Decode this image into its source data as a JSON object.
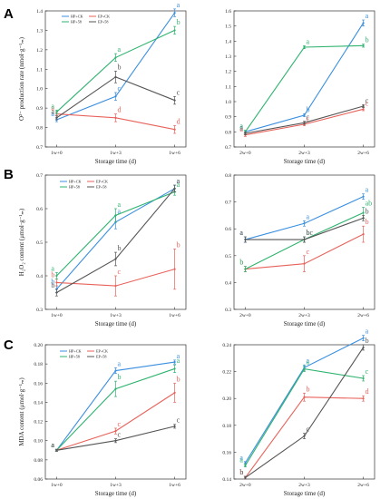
{
  "colors": {
    "HP+CK": "#3b8fe0",
    "EP+CK": "#e8625a",
    "HP+58": "#2fb36f",
    "EP+58": "#555555"
  },
  "chart_data": [
    {
      "panel": "A",
      "type": "line",
      "ylabel": "O²⁻ production rate (nmol·g⁻¹ₘ)",
      "xlabel": "Storage time (d)",
      "categories": [
        "1w+0",
        "1w+3",
        "1w+6"
      ],
      "ylim": [
        0.7,
        1.4
      ],
      "yticks": [
        "0.7",
        "0.8",
        "0.9",
        "1.0",
        "1.1",
        "1.2",
        "1.3",
        "1.4"
      ],
      "legend": [
        "HP+CK",
        "EP+CK",
        "HP+58",
        "EP+58"
      ],
      "series": [
        {
          "name": "HP+CK",
          "values": [
            0.84,
            0.96,
            1.39
          ],
          "err": [
            0.01,
            0.02,
            0.02
          ],
          "letters": [
            "a",
            "c",
            "a"
          ]
        },
        {
          "name": "EP+CK",
          "values": [
            0.87,
            0.85,
            0.79
          ],
          "err": [
            0.01,
            0.02,
            0.02
          ],
          "letters": [
            "a",
            "d",
            "d"
          ]
        },
        {
          "name": "HP+58",
          "values": [
            0.88,
            1.16,
            1.3
          ],
          "err": [
            0.01,
            0.02,
            0.02
          ],
          "letters": [
            "a",
            "a",
            "b"
          ]
        },
        {
          "name": "EP+58",
          "values": [
            0.85,
            1.06,
            0.94
          ],
          "err": [
            0.01,
            0.03,
            0.02
          ],
          "letters": [
            "a",
            "b",
            "c"
          ]
        }
      ]
    },
    {
      "panel": "A2",
      "type": "line",
      "ylabel": "",
      "xlabel": "Storage time (d)",
      "categories": [
        "2w+0",
        "2w+3",
        "2w+6"
      ],
      "ylim": [
        0.7,
        1.6
      ],
      "yticks": [
        "0.7",
        "0.8",
        "0.9",
        "1.0",
        "1.1",
        "1.2",
        "1.3",
        "1.4",
        "1.5",
        "1.6"
      ],
      "series": [
        {
          "name": "HP+CK",
          "values": [
            0.8,
            0.91,
            1.52
          ],
          "err": [
            0.01,
            0.01,
            0.02
          ],
          "letters": [
            "a",
            "b",
            "a"
          ]
        },
        {
          "name": "EP+CK",
          "values": [
            0.78,
            0.85,
            0.95
          ],
          "err": [
            0.01,
            0.01,
            0.01
          ],
          "letters": [
            "a",
            "c",
            "c"
          ]
        },
        {
          "name": "HP+58",
          "values": [
            0.8,
            1.36,
            1.37
          ],
          "err": [
            0.01,
            0.01,
            0.01
          ],
          "letters": [
            "a",
            "a",
            "b"
          ]
        },
        {
          "name": "EP+58",
          "values": [
            0.79,
            0.86,
            0.97
          ],
          "err": [
            0.01,
            0.01,
            0.01
          ],
          "letters": [
            "a",
            "c",
            "c"
          ]
        }
      ]
    },
    {
      "panel": "B",
      "type": "line",
      "ylabel": "H₂O₂ content (μmol·g⁻¹ₘ)",
      "xlabel": "Storage time (d)",
      "categories": [
        "1w+0",
        "1w+3",
        "1w+6"
      ],
      "ylim": [
        0.3,
        0.7
      ],
      "yticks": [
        "0.3",
        "0.4",
        "0.5",
        "0.6",
        "0.7"
      ],
      "legend": [
        "HP+CK",
        "EP+CK",
        "HP+58",
        "EP+58"
      ],
      "series": [
        {
          "name": "HP+CK",
          "values": [
            0.36,
            0.56,
            0.66
          ],
          "err": [
            0.01,
            0.02,
            0.01
          ],
          "letters": [
            "b",
            "a",
            "a"
          ]
        },
        {
          "name": "EP+CK",
          "values": [
            0.38,
            0.37,
            0.42
          ],
          "err": [
            0.01,
            0.03,
            0.06
          ],
          "letters": [
            "b",
            "c",
            "b"
          ]
        },
        {
          "name": "HP+58",
          "values": [
            0.4,
            0.58,
            0.65
          ],
          "err": [
            0.01,
            0.02,
            0.01
          ],
          "letters": [
            "a",
            "a",
            "a"
          ]
        },
        {
          "name": "EP+58",
          "values": [
            0.35,
            0.45,
            0.66
          ],
          "err": [
            0.01,
            0.02,
            0.01
          ],
          "letters": [
            "b",
            "b",
            "a"
          ]
        }
      ]
    },
    {
      "panel": "B2",
      "type": "line",
      "ylabel": "",
      "xlabel": "Storage time (d)",
      "categories": [
        "2w+0",
        "2w+3",
        "2w+6"
      ],
      "ylim": [
        0.3,
        0.8
      ],
      "yticks": [
        "0.3",
        "0.4",
        "0.5",
        "0.6",
        "0.7",
        "0.8"
      ],
      "series": [
        {
          "name": "HP+CK",
          "values": [
            0.56,
            0.62,
            0.72
          ],
          "err": [
            0.01,
            0.01,
            0.01
          ],
          "letters": [
            "a",
            "a",
            "a"
          ]
        },
        {
          "name": "EP+CK",
          "values": [
            0.45,
            0.47,
            0.58
          ],
          "err": [
            0.01,
            0.03,
            0.03
          ],
          "letters": [
            "b",
            "c",
            "b"
          ]
        },
        {
          "name": "HP+58",
          "values": [
            0.45,
            0.56,
            0.66
          ],
          "err": [
            0.01,
            0.01,
            0.02
          ],
          "letters": [
            "b",
            "b",
            "ab"
          ]
        },
        {
          "name": "EP+58",
          "values": [
            0.56,
            0.56,
            0.64
          ],
          "err": [
            0.01,
            0.01,
            0.01
          ],
          "letters": [
            "a",
            "bc",
            "b"
          ]
        }
      ]
    },
    {
      "panel": "C",
      "type": "line",
      "ylabel": "MDA content (μmol·g⁻¹ₘ)",
      "xlabel": "Storage time (d)",
      "categories": [
        "1w+0",
        "1w+3",
        "1w+6"
      ],
      "ylim": [
        0.06,
        0.2
      ],
      "yticks": [
        "0.06",
        "0.08",
        "0.10",
        "0.12",
        "0.14",
        "0.16",
        "0.18",
        "0.20"
      ],
      "legend": [
        "HP+CK",
        "EP+CK",
        "HP+58",
        "EP+58"
      ],
      "series": [
        {
          "name": "HP+CK",
          "values": [
            0.09,
            0.173,
            0.182
          ],
          "err": [
            0.001,
            0.003,
            0.002
          ],
          "letters": [
            "a",
            "a",
            "a"
          ]
        },
        {
          "name": "EP+CK",
          "values": [
            0.09,
            0.11,
            0.15
          ],
          "err": [
            0.001,
            0.003,
            0.01
          ],
          "letters": [
            "a",
            "c",
            "b"
          ]
        },
        {
          "name": "HP+58",
          "values": [
            0.09,
            0.154,
            0.175
          ],
          "err": [
            0.001,
            0.008,
            0.004
          ],
          "letters": [
            "a",
            "b",
            "a"
          ]
        },
        {
          "name": "EP+58",
          "values": [
            0.09,
            0.1,
            0.115
          ],
          "err": [
            0.001,
            0.002,
            0.002
          ],
          "letters": [
            "a",
            "c",
            "c"
          ]
        }
      ]
    },
    {
      "panel": "C2",
      "type": "line",
      "ylabel": "",
      "xlabel": "Storage time (d)",
      "categories": [
        "2w+0",
        "2w+3",
        "2w+6"
      ],
      "ylim": [
        0.14,
        0.24
      ],
      "yticks": [
        "0.14",
        "0.16",
        "0.18",
        "0.20",
        "0.22",
        "0.24"
      ],
      "series": [
        {
          "name": "HP+CK",
          "values": [
            0.152,
            0.223,
            0.245
          ],
          "err": [
            0.001,
            0.002,
            0.002
          ],
          "letters": [
            "a",
            "a",
            "a"
          ]
        },
        {
          "name": "EP+CK",
          "values": [
            0.141,
            0.201,
            0.2
          ],
          "err": [
            0.001,
            0.003,
            0.002
          ],
          "letters": [
            "b",
            "b",
            "d"
          ]
        },
        {
          "name": "HP+58",
          "values": [
            0.15,
            0.222,
            0.215
          ],
          "err": [
            0.001,
            0.002,
            0.002
          ],
          "letters": [
            "a",
            "a",
            "c"
          ]
        },
        {
          "name": "EP+58",
          "values": [
            0.141,
            0.172,
            0.238
          ],
          "err": [
            0.001,
            0.002,
            0.002
          ],
          "letters": [
            "b",
            "c",
            "b"
          ]
        }
      ]
    }
  ],
  "panel_labels": [
    "A",
    "B",
    "C"
  ]
}
